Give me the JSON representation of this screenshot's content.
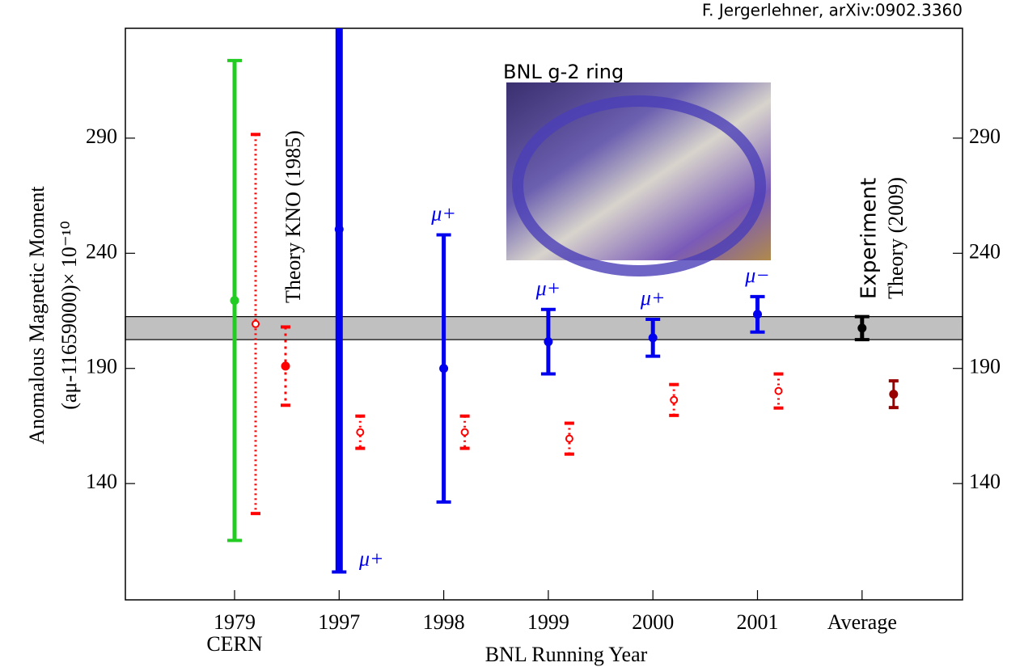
{
  "chart_data": {
    "type": "errorbar",
    "source": "F. Jergerlehner, arXiv:0902.3360",
    "photo_caption": "BNL g-2 ring",
    "y_label": [
      "Anomalous Magnetic Moment",
      "(aμ-11659000)× 10⁻¹⁰"
    ],
    "x_label": "BNL Running Year",
    "categories": [
      "1979",
      "1997",
      "1998",
      "1999",
      "2000",
      "2001",
      "Average"
    ],
    "category_sublabel": "CERN",
    "ylim": [
      89.5,
      337.7
    ],
    "yticks": [
      140,
      190,
      240,
      290
    ],
    "series": [
      {
        "colors": [
          "#22cc22",
          "#0000ee",
          "#0000ee",
          "#0000ee",
          "#0000ee",
          "#0000ee",
          "#000000"
        ],
        "values": [
          219.5,
          250.4,
          190,
          201.6,
          203.3,
          213.5,
          207.5
        ],
        "errors": [
          104.2,
          148.8,
          58,
          14,
          8,
          7.7,
          5
        ],
        "point_labels": [
          null,
          "μ+",
          "μ+",
          "μ+",
          "μ+",
          "μ−",
          null
        ],
        "label": "Experiment"
      },
      {
        "color": "#ff0000",
        "style": "dotted-hollow",
        "values": [
          209.3,
          162.3,
          162.3,
          159.5,
          176.3,
          180.2,
          null
        ],
        "errors": [
          82.3,
          7,
          7,
          6.7,
          6.7,
          7.4,
          null
        ]
      },
      {
        "color": "#ff0000",
        "style": "solid-dotted",
        "values": [
          191,
          null,
          null,
          null,
          null,
          null,
          null
        ],
        "errors": [
          17,
          null,
          null,
          null,
          null,
          null,
          null
        ],
        "label": "Theory KNO (1985)"
      },
      {
        "color": "#990000",
        "style": "solid",
        "values": [
          null,
          null,
          null,
          null,
          null,
          null,
          178.8
        ],
        "errors": [
          null,
          null,
          null,
          null,
          null,
          null,
          5.8
        ],
        "label": "Theory (2009)"
      }
    ]
  }
}
